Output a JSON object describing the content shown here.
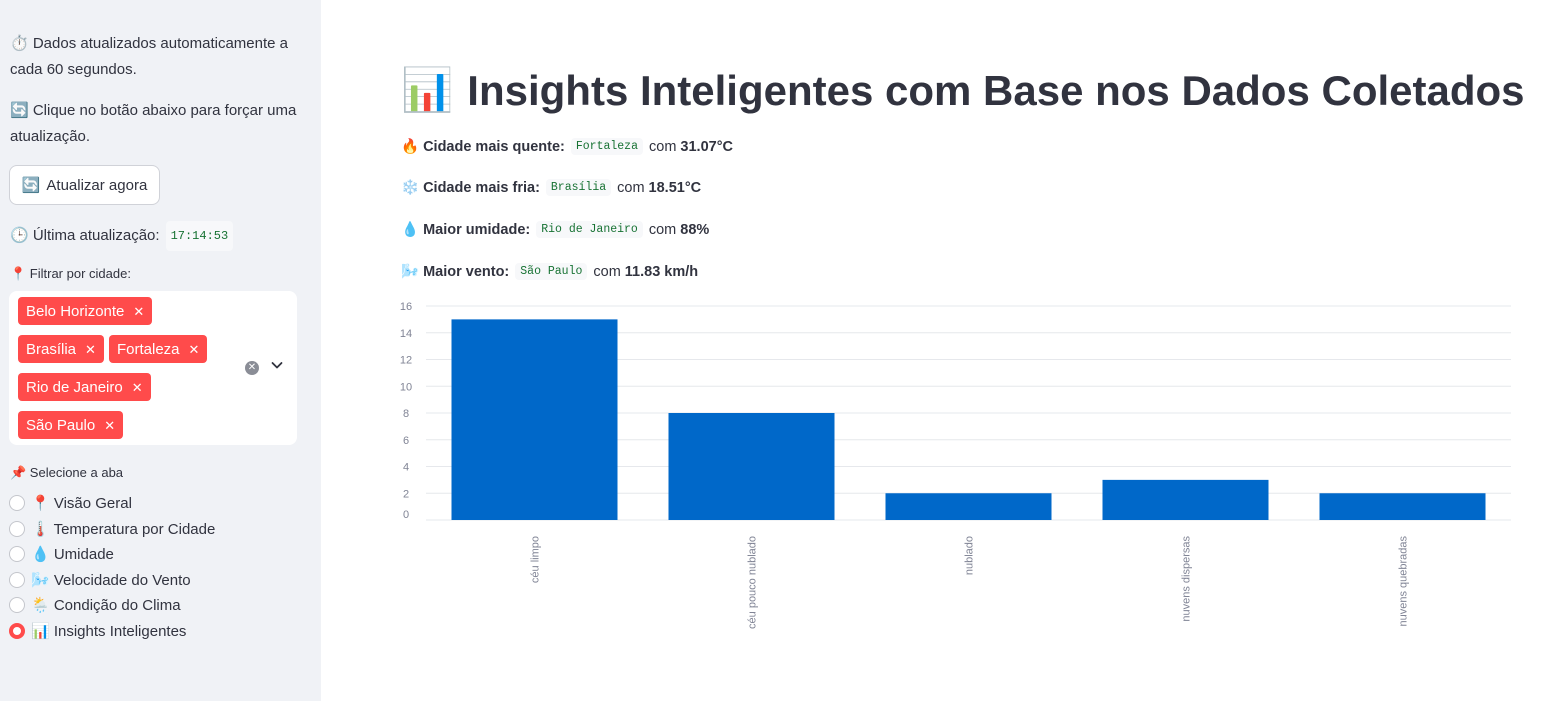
{
  "sidebar": {
    "auto_update_text": "⏱️ Dados atualizados automaticamente a cada 60 segundos.",
    "click_text": "🔄 Clique no botão abaixo para forçar uma atualização.",
    "update_button_icon": "🔄",
    "update_button_label": "Atualizar agora",
    "last_update_label": "🕒 Última atualização:",
    "last_update_value": "17:14:53",
    "filter_label": "📍 Filtrar por cidade:",
    "selected_cities": [
      "Belo Horizonte",
      "Brasília",
      "Fortaleza",
      "Rio de Janeiro",
      "São Paulo"
    ],
    "tab_label": "📌 Selecione a aba",
    "tabs": [
      {
        "label": "📍 Visão Geral",
        "selected": false
      },
      {
        "label": "🌡️ Temperatura por Cidade",
        "selected": false
      },
      {
        "label": "💧 Umidade",
        "selected": false
      },
      {
        "label": "🌬️ Velocidade do Vento",
        "selected": false
      },
      {
        "label": "🌦️ Condição do Clima",
        "selected": false
      },
      {
        "label": "📊 Insights Inteligentes",
        "selected": true
      }
    ],
    "accent_color": "#ff4b4b"
  },
  "main": {
    "title_icon": "📊",
    "title": "Insights Inteligentes com Base nos Dados Coletados",
    "insights": [
      {
        "icon": "🔥",
        "label": "Cidade mais quente:",
        "city": "Fortaleza",
        "connector": "com",
        "value": "31.07°C"
      },
      {
        "icon": "❄️",
        "label": "Cidade mais fria:",
        "city": "Brasília",
        "connector": "com",
        "value": "18.51°C"
      },
      {
        "icon": "💧",
        "label": "Maior umidade:",
        "city": "Rio de Janeiro",
        "connector": "com",
        "value": "88%"
      },
      {
        "icon": "🌬️",
        "label": "Maior vento:",
        "city": "São Paulo",
        "connector": "com",
        "value": "11.83 km/h"
      }
    ]
  },
  "chart_data": {
    "type": "bar",
    "categories": [
      "céu limpo",
      "céu pouco nublado",
      "nublado",
      "nuvens dispersas",
      "nuvens quebradas"
    ],
    "values": [
      15,
      8,
      2,
      3,
      2
    ],
    "ylim": [
      0,
      16
    ],
    "yticks": [
      0,
      2,
      4,
      6,
      8,
      10,
      12,
      14,
      16
    ],
    "grid": true,
    "bar_color": "#0068c9"
  }
}
